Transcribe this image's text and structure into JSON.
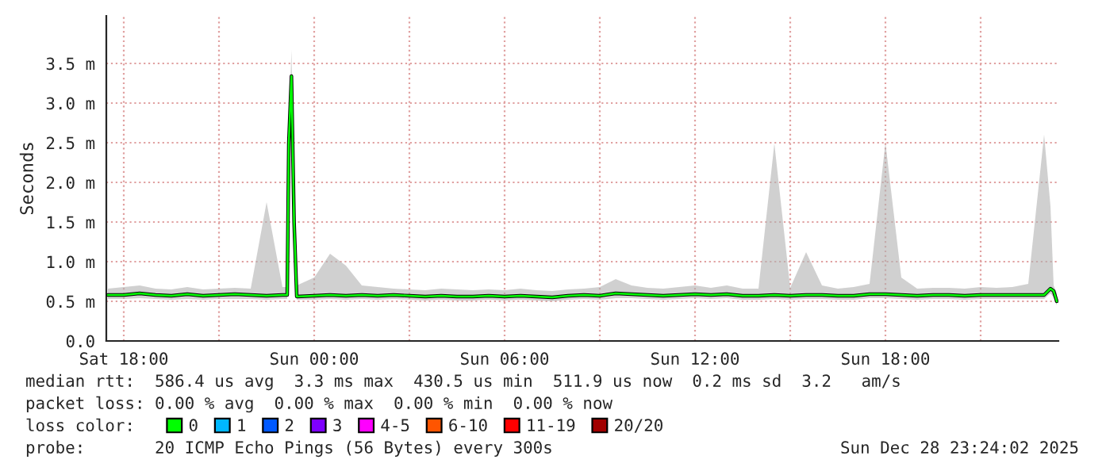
{
  "chart_data": {
    "type": "line",
    "ylabel": "Seconds",
    "legend_title": "loss color:",
    "x": [
      "2025-12-27T17:30",
      "2025-12-27T18:00",
      "2025-12-27T18:30",
      "2025-12-27T19:00",
      "2025-12-27T19:30",
      "2025-12-27T20:00",
      "2025-12-27T20:30",
      "2025-12-27T21:00",
      "2025-12-27T21:30",
      "2025-12-27T22:00",
      "2025-12-27T22:30",
      "2025-12-27T23:00",
      "2025-12-27T23:09",
      "2025-12-27T23:12",
      "2025-12-27T23:17",
      "2025-12-27T23:22",
      "2025-12-27T23:27",
      "2025-12-28T00:00",
      "2025-12-28T00:30",
      "2025-12-28T01:00",
      "2025-12-28T01:30",
      "2025-12-28T02:00",
      "2025-12-28T02:30",
      "2025-12-28T03:00",
      "2025-12-28T03:30",
      "2025-12-28T04:00",
      "2025-12-28T04:30",
      "2025-12-28T05:00",
      "2025-12-28T05:30",
      "2025-12-28T06:00",
      "2025-12-28T06:30",
      "2025-12-28T07:00",
      "2025-12-28T07:30",
      "2025-12-28T08:00",
      "2025-12-28T08:30",
      "2025-12-28T09:00",
      "2025-12-28T09:30",
      "2025-12-28T10:00",
      "2025-12-28T10:30",
      "2025-12-28T11:00",
      "2025-12-28T11:30",
      "2025-12-28T12:00",
      "2025-12-28T12:30",
      "2025-12-28T13:00",
      "2025-12-28T13:30",
      "2025-12-28T14:00",
      "2025-12-28T14:30",
      "2025-12-28T15:00",
      "2025-12-28T15:30",
      "2025-12-28T16:00",
      "2025-12-28T16:30",
      "2025-12-28T17:00",
      "2025-12-28T17:30",
      "2025-12-28T18:00",
      "2025-12-28T18:30",
      "2025-12-28T19:00",
      "2025-12-28T19:30",
      "2025-12-28T20:00",
      "2025-12-28T20:30",
      "2025-12-28T21:00",
      "2025-12-28T21:30",
      "2025-12-28T22:00",
      "2025-12-28T22:30",
      "2025-12-28T23:00",
      "2025-12-28T23:12",
      "2025-12-28T23:18",
      "2025-12-28T23:24"
    ],
    "series": [
      {
        "name": "0",
        "color": "#00ff00",
        "values": [
          0.58,
          0.58,
          0.6,
          0.58,
          0.57,
          0.59,
          0.57,
          0.58,
          0.59,
          0.58,
          0.57,
          0.58,
          0.58,
          2.5,
          3.34,
          1.5,
          0.56,
          0.57,
          0.58,
          0.57,
          0.58,
          0.57,
          0.58,
          0.57,
          0.56,
          0.57,
          0.56,
          0.56,
          0.57,
          0.56,
          0.57,
          0.56,
          0.55,
          0.57,
          0.58,
          0.57,
          0.6,
          0.59,
          0.58,
          0.57,
          0.58,
          0.59,
          0.58,
          0.59,
          0.57,
          0.57,
          0.58,
          0.57,
          0.58,
          0.58,
          0.57,
          0.57,
          0.59,
          0.59,
          0.58,
          0.57,
          0.58,
          0.58,
          0.57,
          0.58,
          0.58,
          0.58,
          0.58,
          0.58,
          0.66,
          0.63,
          0.5
        ],
        "lower": [
          0.53,
          0.53,
          0.54,
          0.53,
          0.52,
          0.53,
          0.52,
          0.53,
          0.53,
          0.53,
          0.52,
          0.53,
          0.53,
          2.4,
          3.2,
          1.4,
          0.52,
          0.52,
          0.53,
          0.52,
          0.53,
          0.52,
          0.53,
          0.52,
          0.51,
          0.52,
          0.51,
          0.51,
          0.52,
          0.51,
          0.52,
          0.51,
          0.5,
          0.52,
          0.53,
          0.52,
          0.54,
          0.54,
          0.53,
          0.52,
          0.53,
          0.54,
          0.53,
          0.54,
          0.52,
          0.52,
          0.53,
          0.52,
          0.53,
          0.53,
          0.52,
          0.52,
          0.54,
          0.54,
          0.53,
          0.52,
          0.53,
          0.53,
          0.52,
          0.53,
          0.53,
          0.53,
          0.53,
          0.53,
          0.6,
          0.55,
          0.45
        ],
        "upper": [
          0.66,
          0.68,
          0.7,
          0.66,
          0.65,
          0.68,
          0.65,
          0.66,
          0.67,
          0.66,
          1.75,
          0.68,
          0.68,
          2.6,
          3.67,
          1.9,
          0.7,
          0.8,
          1.1,
          0.95,
          0.7,
          0.68,
          0.66,
          0.65,
          0.64,
          0.66,
          0.65,
          0.64,
          0.65,
          0.64,
          0.66,
          0.64,
          0.63,
          0.65,
          0.66,
          0.68,
          0.78,
          0.7,
          0.67,
          0.66,
          0.68,
          0.7,
          0.67,
          0.7,
          0.66,
          0.66,
          2.49,
          0.67,
          1.12,
          0.7,
          0.66,
          0.68,
          0.72,
          2.5,
          0.8,
          0.66,
          0.67,
          0.67,
          0.66,
          0.68,
          0.67,
          0.68,
          0.72,
          2.6,
          1.7,
          0.7,
          0.6
        ]
      },
      {
        "name": "1",
        "color": "#00b8ff",
        "values": [
          null,
          null,
          null,
          null,
          null,
          null,
          null,
          null,
          null,
          null,
          null,
          null,
          null,
          null,
          null,
          null,
          null,
          null,
          null,
          null,
          null,
          null,
          null,
          null,
          null,
          null,
          null,
          null,
          null,
          null,
          null,
          null,
          null,
          null,
          null,
          null,
          null,
          null,
          null,
          null,
          null,
          null,
          null,
          null,
          null,
          null,
          null,
          null,
          null,
          null,
          null,
          null,
          null,
          null,
          null,
          null,
          null,
          null,
          null,
          null,
          null,
          null,
          null,
          null,
          null,
          null,
          null
        ]
      },
      {
        "name": "2",
        "color": "#0059ff",
        "values": [
          null,
          null,
          null,
          null,
          null,
          null,
          null,
          null,
          null,
          null,
          null,
          null,
          null,
          null,
          null,
          null,
          null,
          null,
          null,
          null,
          null,
          null,
          null,
          null,
          null,
          null,
          null,
          null,
          null,
          null,
          null,
          null,
          null,
          null,
          null,
          null,
          null,
          null,
          null,
          null,
          null,
          null,
          null,
          null,
          null,
          null,
          null,
          null,
          null,
          null,
          null,
          null,
          null,
          null,
          null,
          null,
          null,
          null,
          null,
          null,
          null,
          null,
          null,
          null,
          null,
          null,
          null
        ]
      },
      {
        "name": "3",
        "color": "#7e00ff",
        "values": [
          null,
          null,
          null,
          null,
          null,
          null,
          null,
          null,
          null,
          null,
          null,
          null,
          null,
          null,
          null,
          null,
          null,
          null,
          null,
          null,
          null,
          null,
          null,
          null,
          null,
          null,
          null,
          null,
          null,
          null,
          null,
          null,
          null,
          null,
          null,
          null,
          null,
          null,
          null,
          null,
          null,
          null,
          null,
          null,
          null,
          null,
          null,
          null,
          null,
          null,
          null,
          null,
          null,
          null,
          null,
          null,
          null,
          null,
          null,
          null,
          null,
          null,
          null,
          null,
          null,
          null,
          null
        ]
      },
      {
        "name": "4-5",
        "color": "#ff00ff",
        "values": [
          null,
          null,
          null,
          null,
          null,
          null,
          null,
          null,
          null,
          null,
          null,
          null,
          null,
          null,
          null,
          null,
          null,
          null,
          null,
          null,
          null,
          null,
          null,
          null,
          null,
          null,
          null,
          null,
          null,
          null,
          null,
          null,
          null,
          null,
          null,
          null,
          null,
          null,
          null,
          null,
          null,
          null,
          null,
          null,
          null,
          null,
          null,
          null,
          null,
          null,
          null,
          null,
          null,
          null,
          null,
          null,
          null,
          null,
          null,
          null,
          null,
          null,
          null,
          null,
          null,
          null,
          null
        ]
      },
      {
        "name": "6-10",
        "color": "#ff5500",
        "values": [
          null,
          null,
          null,
          null,
          null,
          null,
          null,
          null,
          null,
          null,
          null,
          null,
          null,
          null,
          null,
          null,
          null,
          null,
          null,
          null,
          null,
          null,
          null,
          null,
          null,
          null,
          null,
          null,
          null,
          null,
          null,
          null,
          null,
          null,
          null,
          null,
          null,
          null,
          null,
          null,
          null,
          null,
          null,
          null,
          null,
          null,
          null,
          null,
          null,
          null,
          null,
          null,
          null,
          null,
          null,
          null,
          null,
          null,
          null,
          null,
          null,
          null,
          null,
          null,
          null,
          null,
          null
        ]
      },
      {
        "name": "11-19",
        "color": "#ff0000",
        "values": [
          null,
          null,
          null,
          null,
          null,
          null,
          null,
          null,
          null,
          null,
          null,
          null,
          null,
          null,
          null,
          null,
          null,
          null,
          null,
          null,
          null,
          null,
          null,
          null,
          null,
          null,
          null,
          null,
          null,
          null,
          null,
          null,
          null,
          null,
          null,
          null,
          null,
          null,
          null,
          null,
          null,
          null,
          null,
          null,
          null,
          null,
          null,
          null,
          null,
          null,
          null,
          null,
          null,
          null,
          null,
          null,
          null,
          null,
          null,
          null,
          null,
          null,
          null,
          null,
          null,
          null,
          null
        ]
      },
      {
        "name": "20/20",
        "color": "#a10000",
        "values": [
          null,
          null,
          null,
          null,
          null,
          null,
          null,
          null,
          null,
          null,
          null,
          null,
          null,
          null,
          null,
          null,
          null,
          null,
          null,
          null,
          null,
          null,
          null,
          null,
          null,
          null,
          null,
          null,
          null,
          null,
          null,
          null,
          null,
          null,
          null,
          null,
          null,
          null,
          null,
          null,
          null,
          null,
          null,
          null,
          null,
          null,
          null,
          null,
          null,
          null,
          null,
          null,
          null,
          null,
          null,
          null,
          null,
          null,
          null,
          null,
          null,
          null,
          null,
          null,
          null,
          null,
          null
        ]
      }
    ],
    "xlim": [
      "2025-12-27T17:27",
      "2025-12-28T23:27"
    ],
    "xticks": [
      {
        "value": "2025-12-27T18:00",
        "label": "Sat 18:00"
      },
      {
        "value": "2025-12-27T21:00",
        "label": null
      },
      {
        "value": "2025-12-28T00:00",
        "label": "Sun 00:00"
      },
      {
        "value": "2025-12-28T03:00",
        "label": null
      },
      {
        "value": "2025-12-28T06:00",
        "label": "Sun 06:00"
      },
      {
        "value": "2025-12-28T09:00",
        "label": null
      },
      {
        "value": "2025-12-28T12:00",
        "label": "Sun 12:00"
      },
      {
        "value": "2025-12-28T15:00",
        "label": null
      },
      {
        "value": "2025-12-28T18:00",
        "label": "Sun 18:00"
      },
      {
        "value": "2025-12-28T21:00",
        "label": null
      }
    ],
    "ylim": [
      0,
      4.1
    ],
    "yticks": [
      {
        "value": 0,
        "label": "0.0"
      },
      {
        "value": 0.5,
        "label": "0.5 m"
      },
      {
        "value": 1.0,
        "label": "1.0 m"
      },
      {
        "value": 1.5,
        "label": "1.5 m"
      },
      {
        "value": 2.0,
        "label": "2.0 m"
      },
      {
        "value": 2.5,
        "label": "2.5 m"
      },
      {
        "value": 3.0,
        "label": "3.0 m"
      },
      {
        "value": 3.5,
        "label": "3.5 m"
      }
    ],
    "grid": true,
    "legend": "bottom",
    "annotations": [
      "median rtt:  586.4 us avg  3.3 ms max  430.5 us min  511.9 us now  0.2 ms sd  3.2   am/s",
      "packet loss: 0.00 % avg  0.00 % max  0.00 % min  0.00 % now",
      "probe:       20 ICMP Echo Pings (56 Bytes) every 300s",
      "Sun Dec 28 23:24:02 2025"
    ]
  }
}
